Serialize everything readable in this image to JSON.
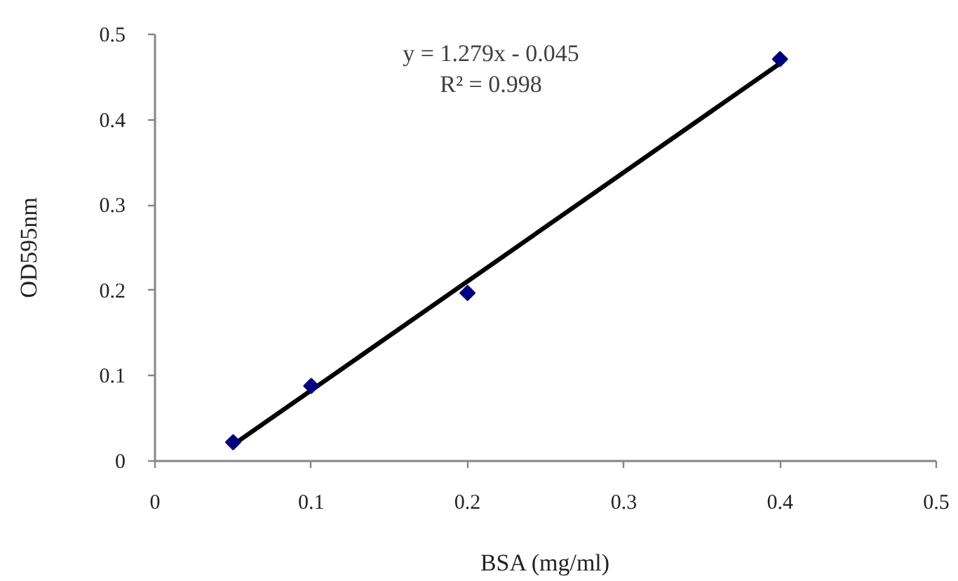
{
  "chart_data": {
    "type": "scatter",
    "xlabel": "BSA (mg/ml)",
    "ylabel": "OD595nm",
    "annotations": [
      "y = 1.279x - 0.045",
      "R² = 0.998"
    ],
    "line_style": "solid",
    "series": [
      {
        "type": "line",
        "color": "#000000",
        "marker": "none",
        "x": [
          0.05,
          0.4
        ],
        "values": [
          0.019,
          0.466
        ]
      },
      {
        "color": "#000080",
        "marker": "diamond",
        "x": [
          0.05,
          0.1,
          0.2,
          0.4
        ],
        "values": [
          0.022,
          0.088,
          0.197,
          0.471
        ]
      }
    ],
    "xlim": [
      0,
      0.5
    ],
    "ylim": [
      0,
      0.5
    ],
    "xticks": [
      0,
      0.1,
      0.2,
      0.3,
      0.4,
      0.5
    ],
    "yticks": [
      0,
      0.1,
      0.2,
      0.3,
      0.4,
      0.5
    ]
  }
}
